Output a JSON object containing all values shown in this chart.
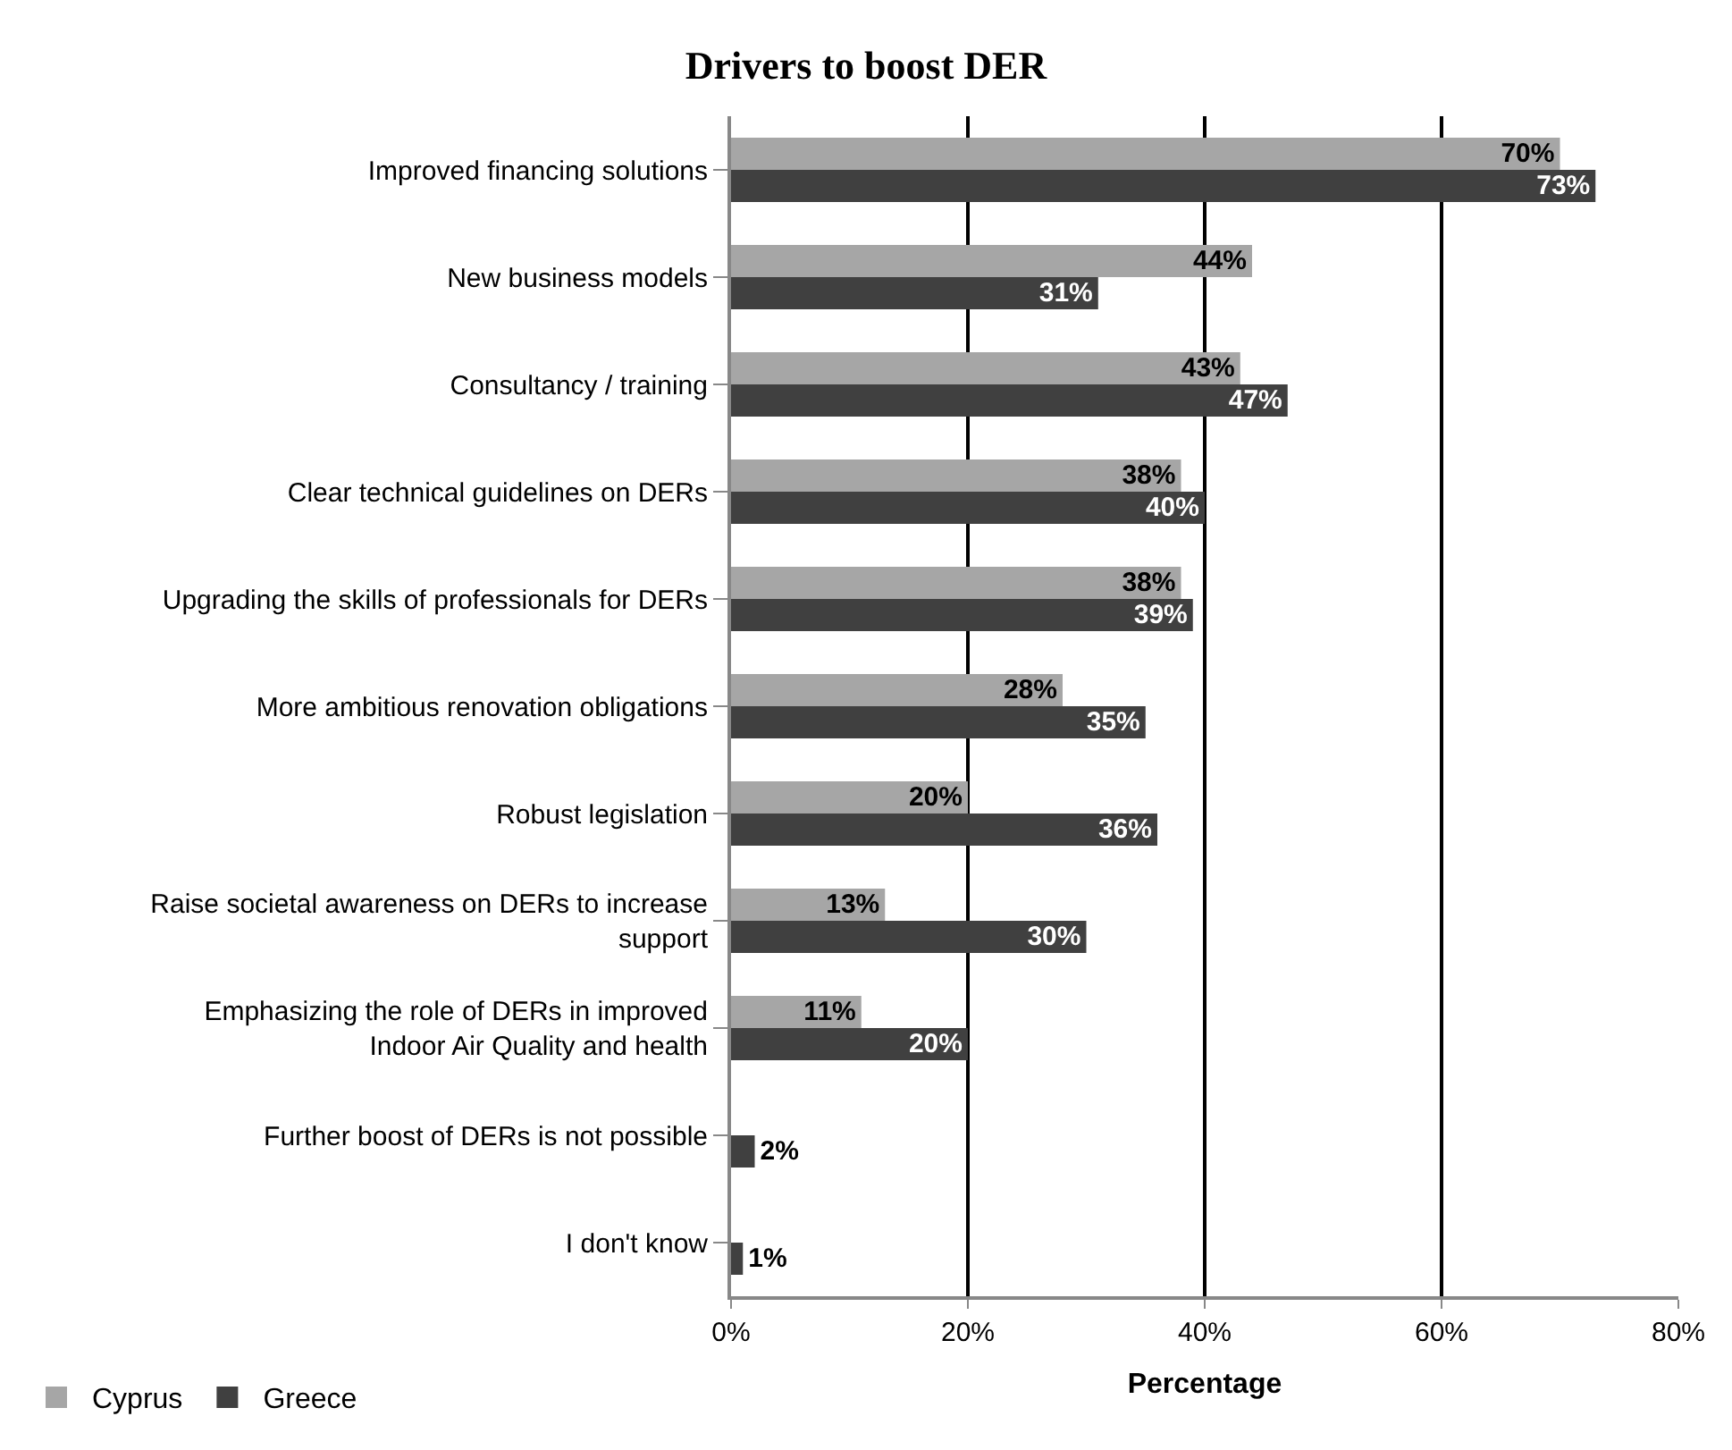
{
  "chart_data": {
    "type": "bar",
    "orientation": "horizontal",
    "title": "Drivers to boost DER",
    "xlabel": "Percentage",
    "categories": [
      "Improved financing solutions",
      "New business models",
      "Consultancy / training",
      "Clear technical guidelines on DERs",
      "Upgrading the skills of professionals for DERs",
      "More ambitious renovation obligations",
      "Robust legislation",
      "Raise societal awareness on DERs to increase support",
      "Emphasizing the role of DERs in improved Indoor Air Quality and health",
      "Further boost of DERs is not possible",
      "I don't know"
    ],
    "series": [
      {
        "name": "Cyprus",
        "color": "#a6a6a6",
        "values": [
          70,
          44,
          43,
          38,
          38,
          28,
          20,
          13,
          11,
          null,
          null
        ],
        "value_labels": [
          "70%",
          "44%",
          "43%",
          "38%",
          "38%",
          "28%",
          "20%",
          "13%",
          "11%",
          null,
          null
        ]
      },
      {
        "name": "Greece",
        "color": "#404040",
        "values": [
          73,
          31,
          47,
          40,
          39,
          35,
          36,
          30,
          20,
          2,
          1
        ],
        "value_labels": [
          "73%",
          "31%",
          "47%",
          "40%",
          "39%",
          "35%",
          "36%",
          "30%",
          "20%",
          "2%",
          "1%"
        ]
      }
    ],
    "xlim": [
      0,
      80
    ],
    "xticks": [
      {
        "value": 0,
        "label": "0%"
      },
      {
        "value": 20,
        "label": "20%"
      },
      {
        "value": 40,
        "label": "40%"
      },
      {
        "value": 60,
        "label": "60%"
      },
      {
        "value": 80,
        "label": "80%"
      }
    ],
    "grid": "x",
    "legend": "bottom left"
  }
}
